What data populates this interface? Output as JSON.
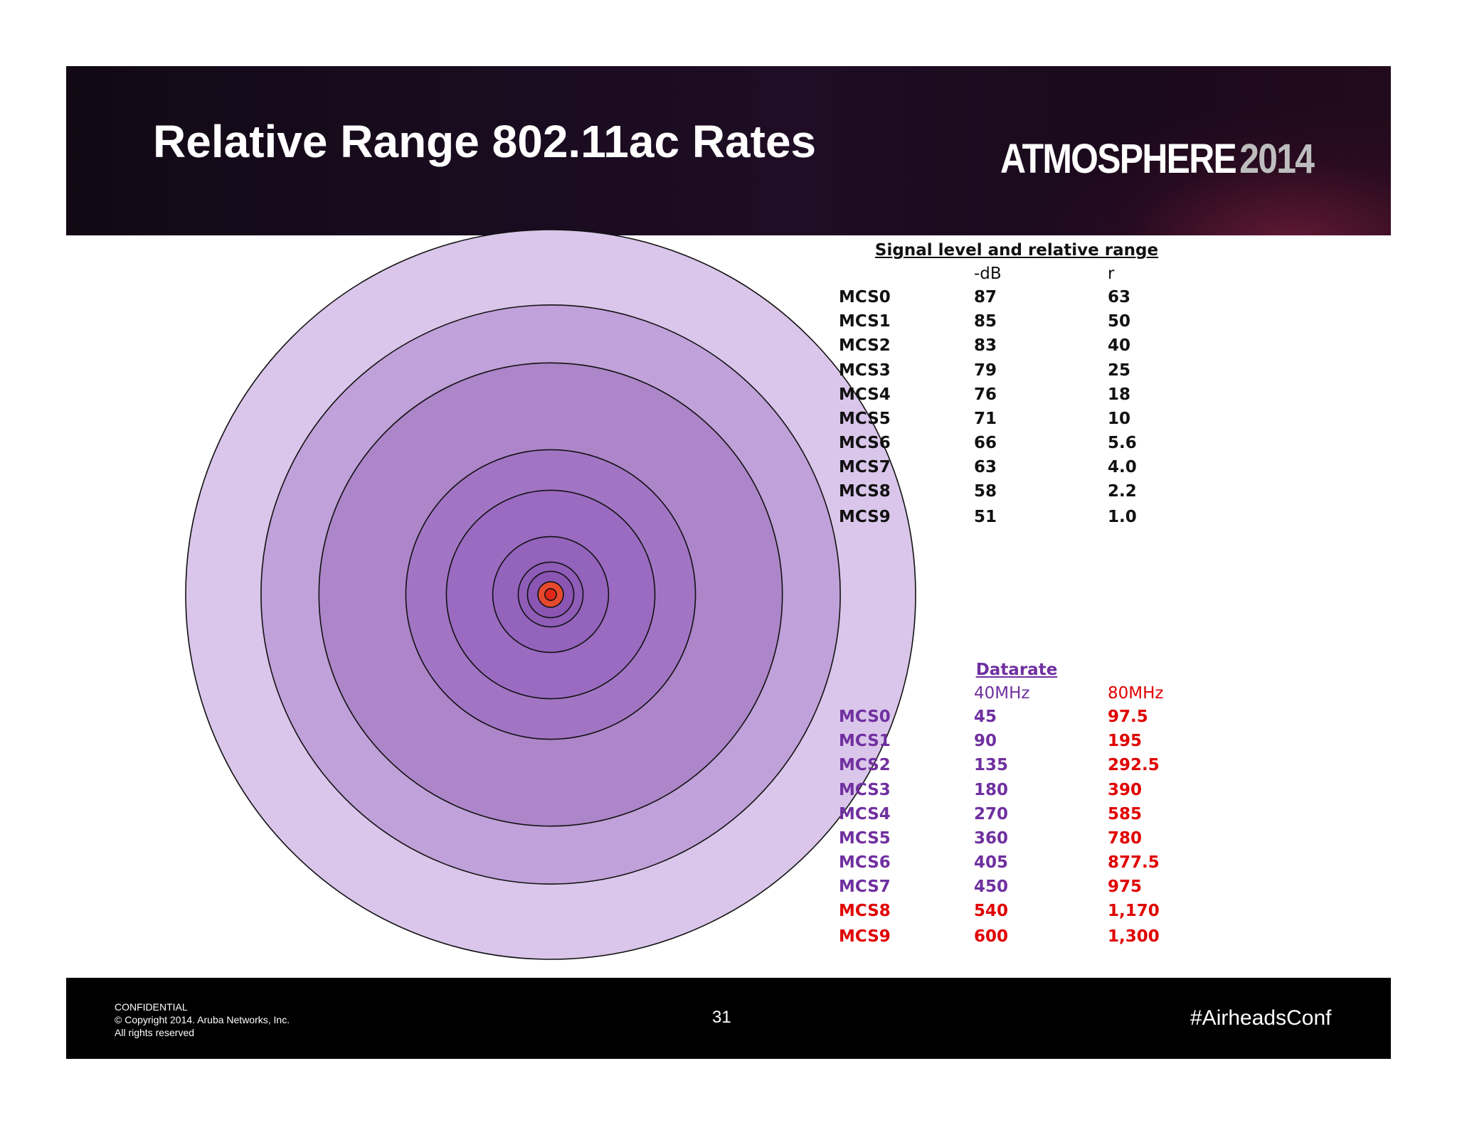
{
  "slide": {
    "title": "Relative Range 802.11ac Rates",
    "brand": {
      "word": "ATMOSPHERE",
      "year": "2014"
    }
  },
  "signal_table": {
    "caption": "Signal level and relative range",
    "col_db": "-dB",
    "col_r": "r",
    "rows": [
      {
        "mcs": "MCS0",
        "db": "87",
        "r": "63"
      },
      {
        "mcs": "MCS1",
        "db": "85",
        "r": "50"
      },
      {
        "mcs": "MCS2",
        "db": "83",
        "r": "40"
      },
      {
        "mcs": "MCS3",
        "db": "79",
        "r": "25"
      },
      {
        "mcs": "MCS4",
        "db": "76",
        "r": "18"
      },
      {
        "mcs": "MCS5",
        "db": "71",
        "r": "10"
      },
      {
        "mcs": "MCS6",
        "db": "66",
        "r": "5.6"
      },
      {
        "mcs": "MCS7",
        "db": "63",
        "r": "4.0"
      },
      {
        "mcs": "MCS8",
        "db": "58",
        "r": "2.2"
      },
      {
        "mcs": "MCS9",
        "db": "51",
        "r": "1.0"
      }
    ]
  },
  "datarate_table": {
    "caption": "Datarate",
    "col_40": "40MHz",
    "col_80": "80MHz",
    "rows": [
      {
        "mcs": "MCS0",
        "mhz40": "45",
        "mhz80": "97.5"
      },
      {
        "mcs": "MCS1",
        "mhz40": "90",
        "mhz80": "195"
      },
      {
        "mcs": "MCS2",
        "mhz40": "135",
        "mhz80": "292.5"
      },
      {
        "mcs": "MCS3",
        "mhz40": "180",
        "mhz80": "390"
      },
      {
        "mcs": "MCS4",
        "mhz40": "270",
        "mhz80": "585"
      },
      {
        "mcs": "MCS5",
        "mhz40": "360",
        "mhz80": "780"
      },
      {
        "mcs": "MCS6",
        "mhz40": "405",
        "mhz80": "877.5"
      },
      {
        "mcs": "MCS7",
        "mhz40": "450",
        "mhz80": "975"
      },
      {
        "mcs": "MCS8",
        "mhz40": "540",
        "mhz80": "1,170"
      },
      {
        "mcs": "MCS9",
        "mhz40": "600",
        "mhz80": "1,300"
      }
    ]
  },
  "range_rings": {
    "relative_range": [
      63,
      50,
      40,
      25,
      18,
      10,
      5.6,
      4.0,
      2.2,
      1.0
    ],
    "fill_colors": [
      "#dac6ea",
      "#c0a1d9",
      "#ad85c9",
      "#a275c4",
      "#9a6bc1",
      "#9463bc",
      "#8f5cb8",
      "#8a55b3",
      "#e64a2e",
      "#e0281a"
    ]
  },
  "colors": {
    "purple_text": "#7030a0",
    "red_text": "#e00000",
    "black_text": "#111111"
  },
  "footer": {
    "confidential": "CONFIDENTIAL",
    "copyright": "© Copyright 2014. Aruba Networks, Inc.",
    "rights": "All rights reserved",
    "page_number": "31",
    "hashtag": "#AirheadsConf"
  }
}
